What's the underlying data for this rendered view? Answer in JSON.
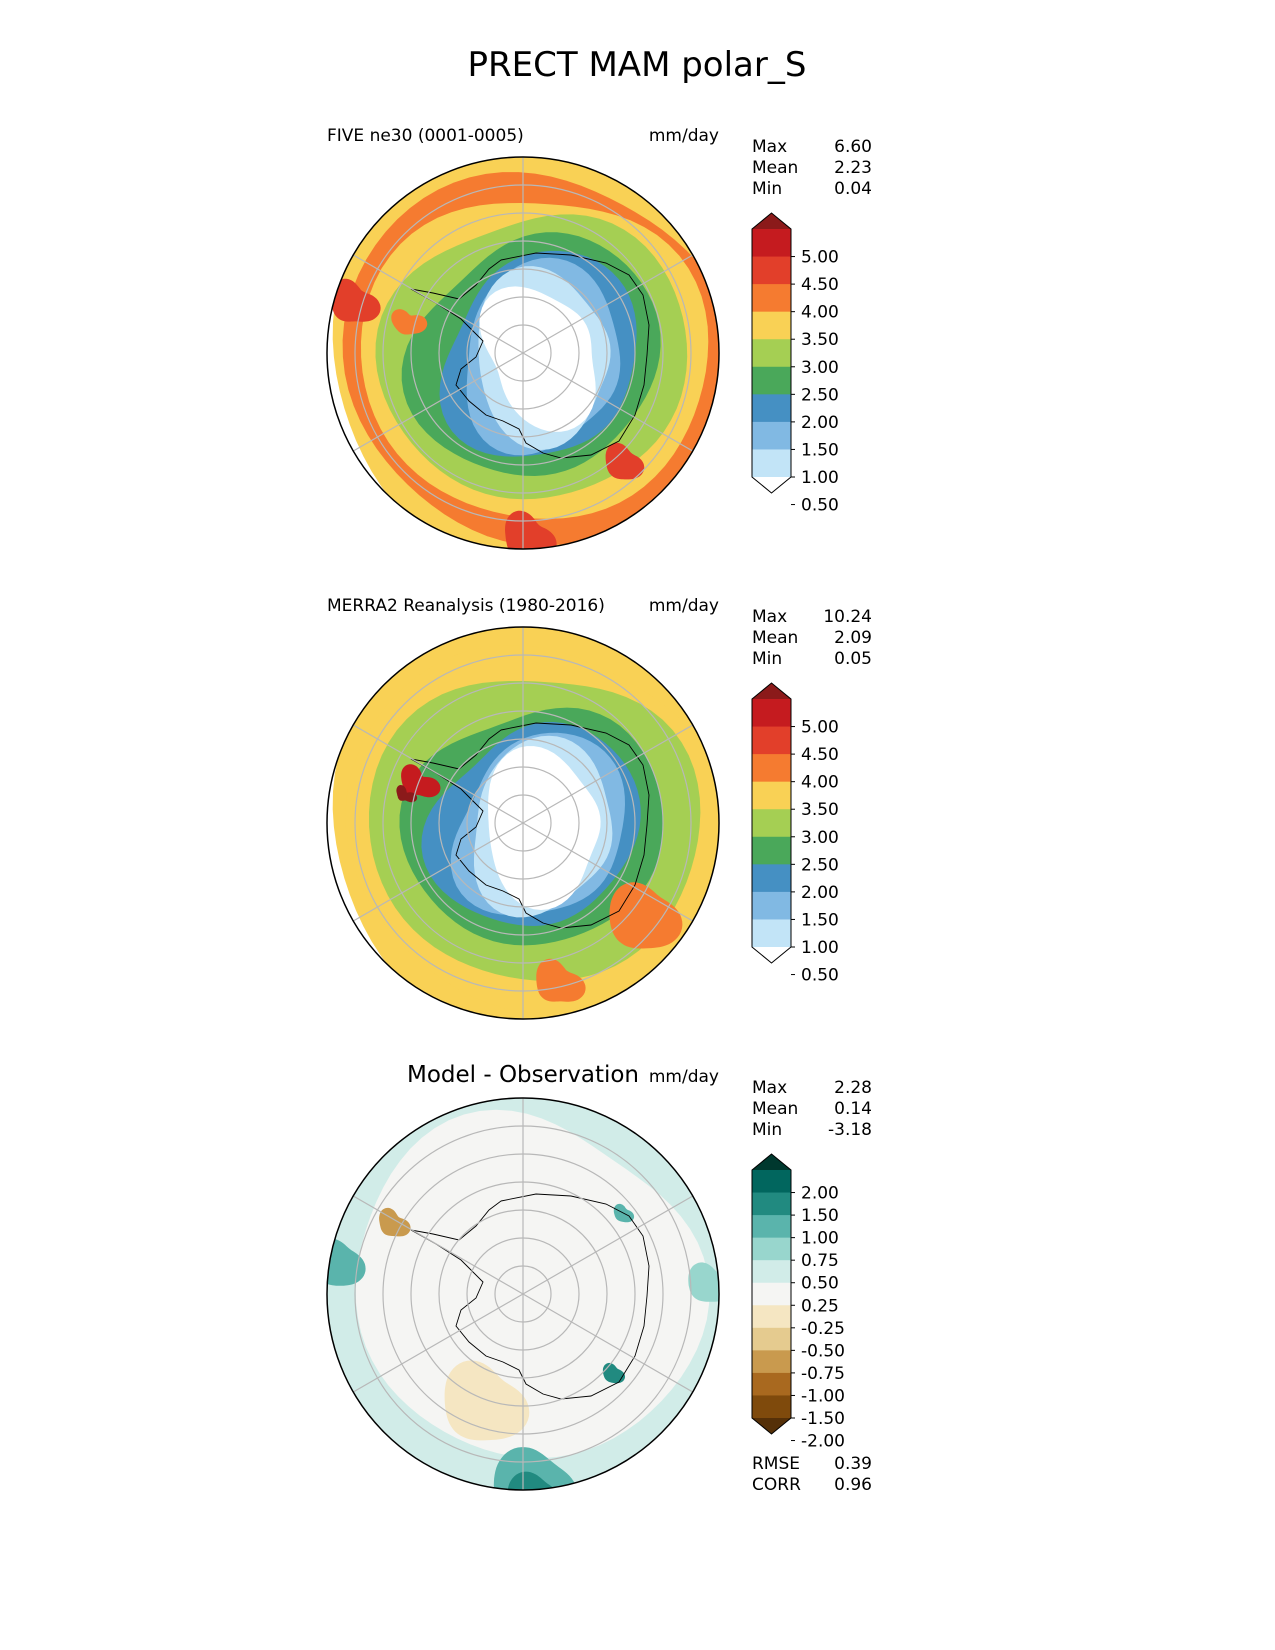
{
  "title": "PRECT MAM polar_S",
  "units": "mm/day",
  "chart_data": [
    {
      "type": "heatmap",
      "projection": "south-polar-stereographic",
      "title": "FIVE ne30 (0001-0005)",
      "units": "mm/day",
      "stats": [
        {
          "label": "Max",
          "value": "6.60"
        },
        {
          "label": "Mean",
          "value": "2.23"
        },
        {
          "label": "Min",
          "value": "0.04"
        }
      ],
      "colorbar": {
        "levels": [
          "5.00",
          "4.50",
          "4.00",
          "3.50",
          "3.00",
          "2.50",
          "2.00",
          "1.50",
          "1.00",
          "0.50"
        ],
        "colors": [
          "#8b1a1a",
          "#c51b1f",
          "#e23f2a",
          "#f57b30",
          "#f9d155",
          "#a5cf53",
          "#4aa85a",
          "#4590c3",
          "#81b9e3",
          "#c2e4f7",
          "#ffffff"
        ],
        "extend": "both"
      }
    },
    {
      "type": "heatmap",
      "projection": "south-polar-stereographic",
      "title": "MERRA2 Reanalysis (1980-2016)",
      "units": "mm/day",
      "stats": [
        {
          "label": "Max",
          "value": "10.24"
        },
        {
          "label": "Mean",
          "value": "2.09"
        },
        {
          "label": "Min",
          "value": "0.05"
        }
      ],
      "colorbar": {
        "levels": [
          "5.00",
          "4.50",
          "4.00",
          "3.50",
          "3.00",
          "2.50",
          "2.00",
          "1.50",
          "1.00",
          "0.50"
        ],
        "colors": [
          "#8b1a1a",
          "#c51b1f",
          "#e23f2a",
          "#f57b30",
          "#f9d155",
          "#a5cf53",
          "#4aa85a",
          "#4590c3",
          "#81b9e3",
          "#c2e4f7",
          "#ffffff"
        ],
        "extend": "both"
      }
    },
    {
      "type": "heatmap",
      "projection": "south-polar-stereographic",
      "title": "Model - Observation",
      "units": "mm/day",
      "stats": [
        {
          "label": "Max",
          "value": "2.28"
        },
        {
          "label": "Mean",
          "value": "0.14"
        },
        {
          "label": "Min",
          "value": "-3.18"
        }
      ],
      "colorbar": {
        "levels": [
          "2.00",
          "1.50",
          "1.00",
          "0.75",
          "0.50",
          "0.25",
          "-0.25",
          "-0.50",
          "-0.75",
          "-1.00",
          "-1.50",
          "-2.00"
        ],
        "colors": [
          "#00382e",
          "#01665e",
          "#218a80",
          "#5ab4ac",
          "#98d6cd",
          "#d1ece8",
          "#f5f5f3",
          "#f5e6c2",
          "#e5cb8f",
          "#c99a4e",
          "#a9691f",
          "#7f4a0c",
          "#553008"
        ],
        "extend": "both"
      },
      "metrics": [
        {
          "label": "RMSE",
          "value": "0.39"
        },
        {
          "label": "CORR",
          "value": "0.96"
        }
      ]
    }
  ]
}
